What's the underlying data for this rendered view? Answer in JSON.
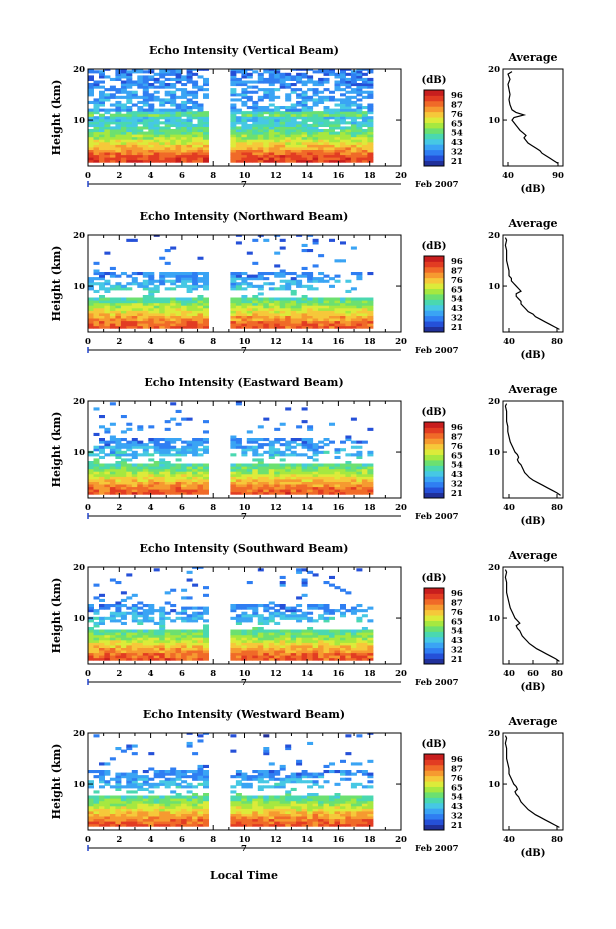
{
  "figure": {
    "xlabel": "Local Time",
    "date_label": "Feb 2007",
    "date_day": "7"
  },
  "colorbar": {
    "unit": "(dB)",
    "ticks": [
      "96",
      "87",
      "76",
      "65",
      "54",
      "43",
      "32",
      "21"
    ],
    "colors": [
      "#20309a",
      "#2550d8",
      "#2f7ef2",
      "#3aa4f4",
      "#46c8e4",
      "#4ad8b0",
      "#6ce070",
      "#a6e840",
      "#dceb3a",
      "#f6c83a",
      "#f69a30",
      "#f06a28",
      "#e23c22",
      "#c81e1e"
    ]
  },
  "chart_data": [
    {
      "type": "heatmap",
      "title": "Echo Intensity (Vertical Beam)",
      "ylabel": "Height (km)",
      "xlim": [
        0,
        20
      ],
      "ylim": [
        1,
        20
      ],
      "xticks": [
        "0",
        "2",
        "4",
        "6",
        "8",
        "10",
        "12",
        "14",
        "16",
        "18",
        "20"
      ],
      "yticks": [
        "10",
        "20"
      ],
      "data_gap": [
        7.8,
        9.0
      ],
      "data_end": 18.0,
      "profile": {
        "title": "Average",
        "xlabel": "(dB)",
        "xlim": [
          35,
          95
        ],
        "xticks": [
          "40",
          "90"
        ],
        "yticks": [
          "10",
          "20"
        ],
        "height_km": [
          1.5,
          2,
          2.5,
          3,
          3.5,
          4,
          4.5,
          5,
          5.5,
          6,
          6.5,
          7,
          7.5,
          8,
          8.5,
          9,
          9.5,
          10,
          10.5,
          11,
          11.5,
          12,
          13,
          14,
          15,
          16,
          17,
          18,
          19,
          19.5
        ],
        "values_db": [
          90,
          86,
          82,
          78,
          74,
          72,
          68,
          64,
          60,
          58,
          56,
          58,
          55,
          52,
          50,
          48,
          46,
          44,
          46,
          56,
          48,
          44,
          42,
          41,
          42,
          41,
          40,
          42,
          40,
          44
        ]
      }
    },
    {
      "type": "heatmap",
      "title": "Echo Intensity (Northward Beam)",
      "ylabel": "Height (km)",
      "xlim": [
        0,
        20
      ],
      "ylim": [
        1,
        20
      ],
      "xticks": [
        "0",
        "2",
        "4",
        "6",
        "8",
        "10",
        "12",
        "14",
        "16",
        "18",
        "20"
      ],
      "yticks": [
        "10",
        "20"
      ],
      "data_gap": [
        7.8,
        9.0
      ],
      "data_end": 18.0,
      "profile": {
        "title": "Average",
        "xlabel": "(dB)",
        "xlim": [
          35,
          85
        ],
        "xticks": [
          "40",
          "80"
        ],
        "yticks": [
          "10",
          "20"
        ],
        "height_km": [
          1.5,
          2,
          2.5,
          3,
          3.5,
          4,
          4.5,
          5,
          5.5,
          6,
          6.5,
          7,
          7.5,
          8,
          8.5,
          9,
          9.5,
          10,
          10.5,
          11,
          11.5,
          12,
          13,
          14,
          15,
          16,
          17,
          18,
          19,
          19.5
        ],
        "values_db": [
          82,
          78,
          74,
          70,
          66,
          62,
          60,
          56,
          54,
          52,
          50,
          50,
          48,
          46,
          46,
          50,
          48,
          46,
          44,
          42,
          42,
          40,
          40,
          39,
          38,
          38,
          38,
          37,
          38,
          37
        ]
      }
    },
    {
      "type": "heatmap",
      "title": "Echo Intensity (Eastward Beam)",
      "ylabel": "Height (km)",
      "xlim": [
        0,
        20
      ],
      "ylim": [
        1,
        20
      ],
      "xticks": [
        "0",
        "2",
        "4",
        "6",
        "8",
        "10",
        "12",
        "14",
        "16",
        "18",
        "20"
      ],
      "yticks": [
        "10",
        "20"
      ],
      "data_gap": [
        7.8,
        9.0
      ],
      "data_end": 18.0,
      "profile": {
        "title": "Average",
        "xlabel": "(dB)",
        "xlim": [
          35,
          85
        ],
        "xticks": [
          "40",
          "80"
        ],
        "yticks": [
          "10",
          "20"
        ],
        "height_km": [
          1.5,
          2,
          2.5,
          3,
          3.5,
          4,
          4.5,
          5,
          5.5,
          6,
          6.5,
          7,
          7.5,
          8,
          8.5,
          9,
          9.5,
          10,
          10.5,
          11,
          11.5,
          12,
          13,
          14,
          15,
          16,
          17,
          18,
          19,
          19.5
        ],
        "values_db": [
          83,
          80,
          76,
          72,
          68,
          64,
          60,
          57,
          55,
          53,
          52,
          51,
          50,
          48,
          47,
          48,
          47,
          45,
          44,
          43,
          42,
          41,
          40,
          39,
          39,
          38,
          38,
          38,
          37,
          38
        ]
      }
    },
    {
      "type": "heatmap",
      "title": "Echo Intensity (Southward Beam)",
      "ylabel": "Height (km)",
      "xlim": [
        0,
        20
      ],
      "ylim": [
        1,
        20
      ],
      "xticks": [
        "0",
        "2",
        "4",
        "6",
        "8",
        "10",
        "12",
        "14",
        "16",
        "18",
        "20"
      ],
      "yticks": [
        "10",
        "20"
      ],
      "data_gap": [
        7.8,
        9.0
      ],
      "data_end": 18.0,
      "profile": {
        "title": "Average",
        "xlabel": "(dB)",
        "xlim": [
          35,
          85
        ],
        "xticks": [
          "40",
          "60",
          "80"
        ],
        "yticks": [
          "10",
          "20"
        ],
        "height_km": [
          1.5,
          2,
          2.5,
          3,
          3.5,
          4,
          4.5,
          5,
          5.5,
          6,
          6.5,
          7,
          7.5,
          8,
          8.5,
          9,
          9.5,
          10,
          10.5,
          11,
          11.5,
          12,
          13,
          14,
          15,
          16,
          17,
          18,
          19,
          19.5
        ],
        "values_db": [
          82,
          79,
          75,
          71,
          67,
          63,
          60,
          57,
          55,
          53,
          51,
          50,
          49,
          47,
          46,
          49,
          47,
          45,
          44,
          43,
          42,
          41,
          40,
          39,
          38,
          38,
          38,
          37,
          38,
          37
        ]
      }
    },
    {
      "type": "heatmap",
      "title": "Echo Intensity (Westward Beam)",
      "ylabel": "Height (km)",
      "xlim": [
        0,
        20
      ],
      "ylim": [
        1,
        20
      ],
      "xticks": [
        "0",
        "2",
        "4",
        "6",
        "8",
        "10",
        "12",
        "14",
        "16",
        "18",
        "20"
      ],
      "yticks": [
        "10",
        "20"
      ],
      "data_gap": [
        7.8,
        9.0
      ],
      "data_end": 18.0,
      "profile": {
        "title": "Average",
        "xlabel": "(dB)",
        "xlim": [
          35,
          85
        ],
        "xticks": [
          "40",
          "80"
        ],
        "yticks": [
          "10",
          "20"
        ],
        "height_km": [
          1.5,
          2,
          2.5,
          3,
          3.5,
          4,
          4.5,
          5,
          5.5,
          6,
          6.5,
          7,
          7.5,
          8,
          8.5,
          9,
          9.5,
          10,
          10.5,
          11,
          11.5,
          12,
          13,
          14,
          15,
          16,
          17,
          18,
          19,
          19.5
        ],
        "values_db": [
          82,
          78,
          74,
          70,
          66,
          62,
          59,
          56,
          54,
          52,
          50,
          49,
          48,
          46,
          45,
          47,
          46,
          44,
          43,
          42,
          41,
          40,
          40,
          39,
          38,
          38,
          38,
          37,
          38,
          37
        ]
      }
    }
  ]
}
